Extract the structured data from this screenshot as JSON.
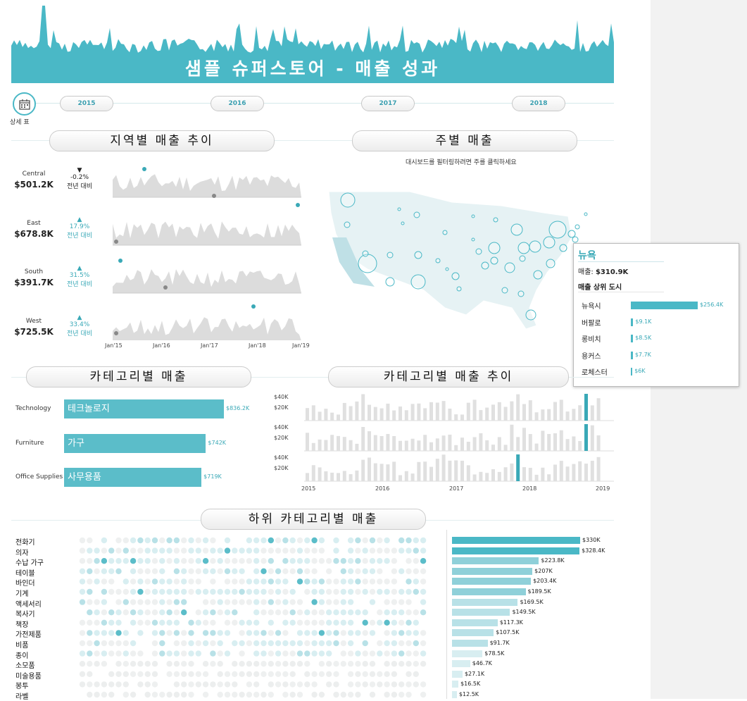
{
  "header": {
    "title": "샘플 슈퍼스토어 - 매출 성과",
    "accent": "#4ab8c6"
  },
  "timeline": {
    "detail_label": "상세 표",
    "years": [
      "2015",
      "2016",
      "2017",
      "2018"
    ]
  },
  "sections": {
    "region": "지역별 매출 추이",
    "state": "주별 매출",
    "category": "카테고리별 매출",
    "category_trend": "카테고리별 매출 추이",
    "subcategory": "하위 카테고리별 매출"
  },
  "regions": [
    {
      "name": "Central",
      "value": "$501.2K",
      "arrow": "▼",
      "change": "-0.2%",
      "label": "전년 대비",
      "up": false
    },
    {
      "name": "East",
      "value": "$678.8K",
      "arrow": "▲",
      "change": "17.9%",
      "label": "전년 대비",
      "up": true
    },
    {
      "name": "South",
      "value": "$391.7K",
      "arrow": "▲",
      "change": "31.5%",
      "label": "전년 대비",
      "up": true
    },
    {
      "name": "West",
      "value": "$725.5K",
      "arrow": "▲",
      "change": "33.4%",
      "label": "전년 대비",
      "up": true
    }
  ],
  "region_axis": [
    "Jan'15",
    "Jan'16",
    "Jan'17",
    "Jan'18",
    "Jan'19"
  ],
  "map": {
    "hint": "대시보드를 필터링하려면 주를 클릭하세요"
  },
  "tooltip": {
    "state": "뉴욕",
    "sales_label": "매출:",
    "sales_value": "$310.9K",
    "top_cities_label": "매출 상위 도시",
    "cities": [
      {
        "name": "뉴욕시",
        "value": "$256.4K",
        "amount": 256.4
      },
      {
        "name": "버팔로",
        "value": "$9.1K",
        "amount": 9.1
      },
      {
        "name": "롱비치",
        "value": "$8.5K",
        "amount": 8.5
      },
      {
        "name": "용커스",
        "value": "$7.7K",
        "amount": 7.7
      },
      {
        "name": "로체스터",
        "value": "$6K",
        "amount": 6
      }
    ]
  },
  "categories": [
    {
      "name": "Technology",
      "label": "테크놀로지",
      "value": "$836.2K",
      "amount": 836.2
    },
    {
      "name": "Furniture",
      "label": "가구",
      "value": "$742K",
      "amount": 742
    },
    {
      "name": "Office Supplies",
      "label": "사무용품",
      "value": "$719K",
      "amount": 719
    }
  ],
  "category_trend": {
    "y_ticks": [
      "$40K",
      "$20K"
    ],
    "x_ticks": [
      "2015",
      "2016",
      "2017",
      "2018",
      "2019"
    ]
  },
  "subcategories": [
    {
      "name": "전화기",
      "value": "$330K",
      "amount": 330
    },
    {
      "name": "의자",
      "value": "$328.4K",
      "amount": 328.4
    },
    {
      "name": "수납 가구",
      "value": "$223.8K",
      "amount": 223.8
    },
    {
      "name": "테이블",
      "value": "$207K",
      "amount": 207
    },
    {
      "name": "바인더",
      "value": "$203.4K",
      "amount": 203.4
    },
    {
      "name": "기계",
      "value": "$189.5K",
      "amount": 189.5
    },
    {
      "name": "액세서리",
      "value": "$169.5K",
      "amount": 169.5
    },
    {
      "name": "복사기",
      "value": "$149.5K",
      "amount": 149.5
    },
    {
      "name": "책장",
      "value": "$117.3K",
      "amount": 117.3
    },
    {
      "name": "가전제품",
      "value": "$107.5K",
      "amount": 107.5
    },
    {
      "name": "비품",
      "value": "$91.7K",
      "amount": 91.7
    },
    {
      "name": "종이",
      "value": "$78.5K",
      "amount": 78.5
    },
    {
      "name": "소모품",
      "value": "$46.7K",
      "amount": 46.7
    },
    {
      "name": "미술용품",
      "value": "$27.1K",
      "amount": 27.1
    },
    {
      "name": "봉투",
      "value": "$16.5K",
      "amount": 16.5
    },
    {
      "name": "라벨",
      "value": "$12.5K",
      "amount": 12.5
    }
  ]
}
